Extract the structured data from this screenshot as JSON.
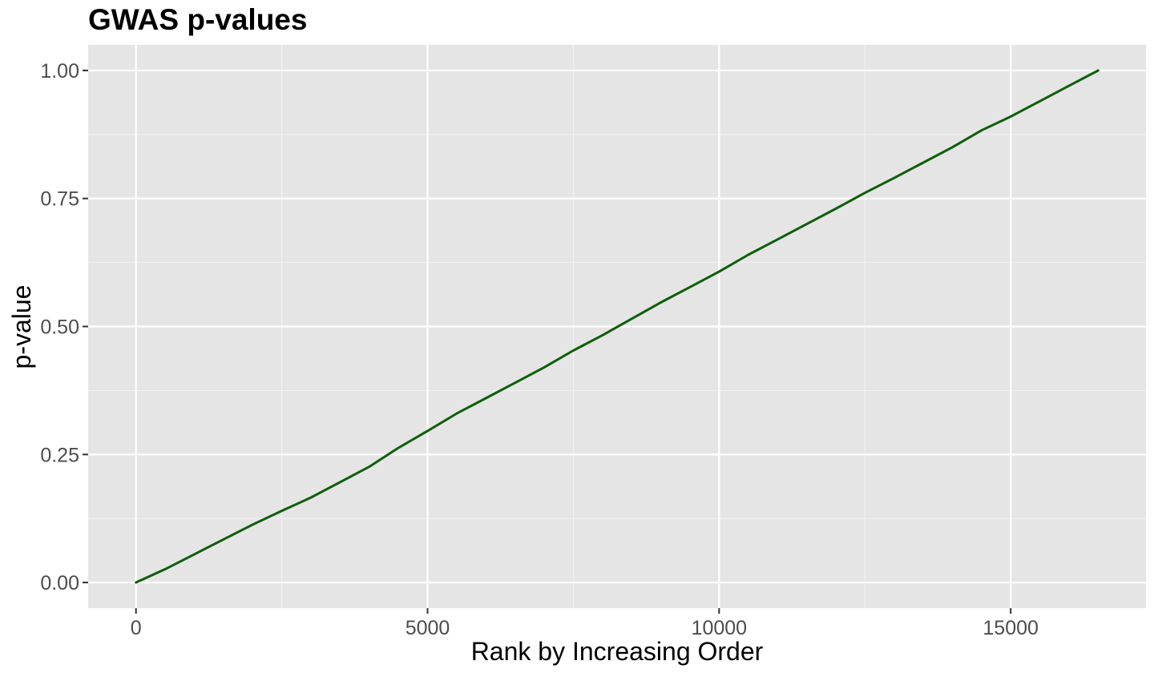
{
  "chart_data": {
    "type": "line",
    "title": "GWAS p-values",
    "xlabel": "Rank by Increasing Order",
    "ylabel": "p-value",
    "xlim": [
      -820,
      17320
    ],
    "ylim": [
      -0.05,
      1.05
    ],
    "x_ticks": [
      0,
      5000,
      10000,
      15000
    ],
    "x_tick_labels": [
      "0",
      "5000",
      "10000",
      "15000"
    ],
    "y_ticks": [
      0,
      0.25,
      0.5,
      0.75,
      1
    ],
    "y_tick_labels": [
      "0.00",
      "0.25",
      "0.50",
      "0.75",
      "1.00"
    ],
    "x_minor_ticks": [
      2500,
      7500,
      12500
    ],
    "y_minor_ticks": [
      0.125,
      0.375,
      0.625,
      0.875
    ],
    "grid": true,
    "legend": "none",
    "series": [
      {
        "color": "#0f5d0a",
        "x": [
          1,
          500,
          1000,
          2000,
          2500,
          3000,
          3500,
          4000,
          4500,
          5000,
          5500,
          6000,
          6500,
          7000,
          7500,
          8000,
          8500,
          9000,
          9500,
          10000,
          10500,
          11000,
          11500,
          12000,
          12500,
          13000,
          13500,
          14000,
          14500,
          15000,
          15500,
          16000,
          16500
        ],
        "y": [
          0.0,
          0.026,
          0.055,
          0.113,
          0.14,
          0.166,
          0.196,
          0.226,
          0.263,
          0.296,
          0.33,
          0.36,
          0.39,
          0.42,
          0.453,
          0.483,
          0.515,
          0.547,
          0.577,
          0.607,
          0.64,
          0.67,
          0.7,
          0.73,
          0.761,
          0.79,
          0.82,
          0.85,
          0.883,
          0.91,
          0.94,
          0.97,
          1.0
        ]
      }
    ]
  }
}
